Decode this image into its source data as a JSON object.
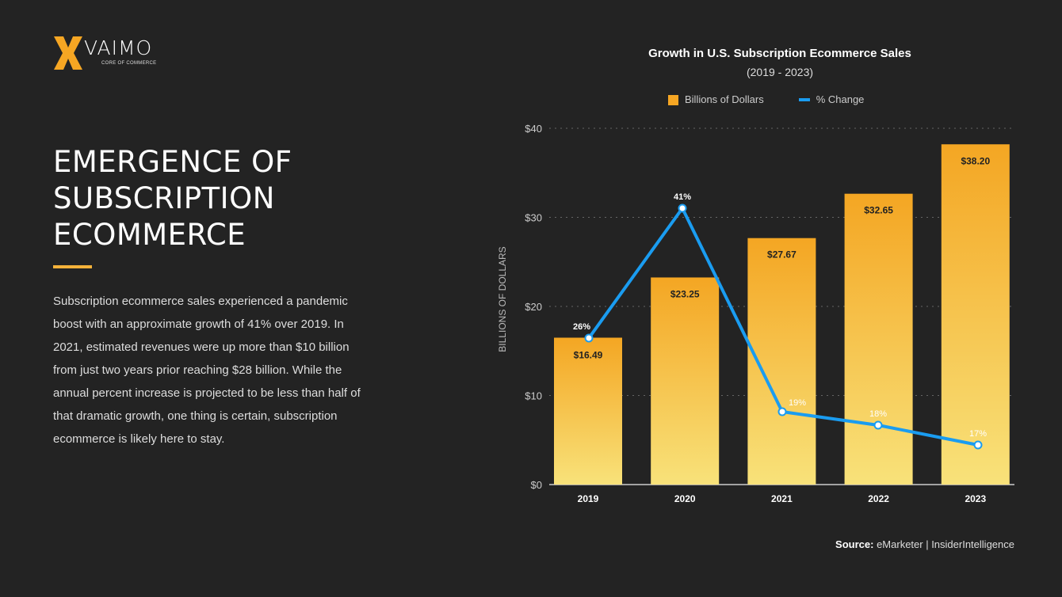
{
  "logo": {
    "name": "VAIMO",
    "tagline": "CORE OF COMMERCE"
  },
  "heading": "EMERGENCE OF SUBSCRIPTION ECOMMERCE",
  "body": "Subscription ecommerce sales experienced a pandemic boost with an approximate growth of 41% over 2019. In 2021, estimated revenues were up more than $10 billion from just two years prior reaching $28 billion. While the annual percent increase is projected to be less than half of that dramatic growth, one thing is certain, subscription ecommerce is likely here to stay.",
  "source": {
    "label": "Source:",
    "text": "eMarketer | InsiderIntelligence"
  },
  "colors": {
    "bar_top": "#f4a623",
    "bar_bottom": "#f8e27a",
    "line": "#1a9cf0",
    "accent": "#f4b23a"
  },
  "chart_data": {
    "type": "bar",
    "title": "Growth in U.S. Subscription Ecommerce Sales",
    "subtitle": "(2019 - 2023)",
    "ylabel": "BILLIONS OF DOLLARS",
    "ylim": [
      0,
      40
    ],
    "yticks": [
      "$0",
      "$10",
      "$20",
      "$30",
      "$40"
    ],
    "grid": true,
    "legend_position": "top",
    "categories": [
      "2019",
      "2020",
      "2021",
      "2022",
      "2023"
    ],
    "series": [
      {
        "name": "Billions of Dollars",
        "type": "bar",
        "values": [
          16.49,
          23.25,
          27.67,
          32.65,
          38.2
        ],
        "labels": [
          "$16.49",
          "$23.25",
          "$27.67",
          "$32.65",
          "$38.20"
        ]
      },
      {
        "name": "% Change",
        "type": "line",
        "values": [
          26,
          41,
          19,
          18,
          17
        ],
        "labels": [
          "26%",
          "41%",
          "19%",
          "18%",
          "17%"
        ]
      }
    ]
  }
}
